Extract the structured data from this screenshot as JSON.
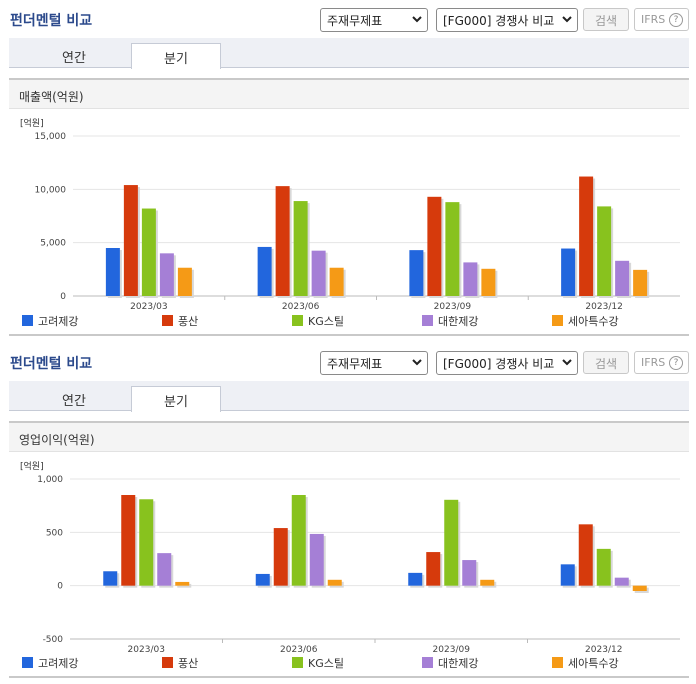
{
  "sections": [
    {
      "title": "펀더멘털 비교",
      "select1": "주재무제표",
      "select2": "[FG000] 경쟁사 비교",
      "search_label": "검색",
      "ifrs_label": "IFRS",
      "help_symbol": "?",
      "tabs": [
        {
          "label": "연간"
        },
        {
          "label": "분기"
        }
      ],
      "active_tab": "분기",
      "chart_title": "매출액(억원)"
    },
    {
      "title": "펀더멘털 비교",
      "select1": "주재무제표",
      "select2": "[FG000] 경쟁사 비교",
      "search_label": "검색",
      "ifrs_label": "IFRS",
      "help_symbol": "?",
      "tabs": [
        {
          "label": "연간"
        },
        {
          "label": "분기"
        }
      ],
      "active_tab": "분기",
      "chart_title": "영업이익(억원)"
    }
  ],
  "colors": {
    "고려제강": "#2266dd",
    "풍산": "#d63a0c",
    "KG스틸": "#88c21e",
    "대한제강": "#a57fd6",
    "세아특수강": "#f59a16"
  },
  "chart_data": [
    {
      "type": "bar",
      "title": "매출액(억원)",
      "unit_label": "[억원]",
      "categories": [
        "2023/03",
        "2023/06",
        "2023/09",
        "2023/12"
      ],
      "ylim": [
        0,
        15000
      ],
      "yticks": [
        0,
        5000,
        10000,
        15000
      ],
      "ytick_labels": [
        "0",
        "5,000",
        "10,000",
        "15,000"
      ],
      "grid": true,
      "legend": "bottom",
      "series": [
        {
          "name": "고려제강",
          "values": [
            4500,
            4600,
            4300,
            4450
          ]
        },
        {
          "name": "풍산",
          "values": [
            10400,
            10300,
            9300,
            11200
          ]
        },
        {
          "name": "KG스틸",
          "values": [
            8200,
            8900,
            8800,
            8400
          ]
        },
        {
          "name": "대한제강",
          "values": [
            4000,
            4250,
            3150,
            3300
          ]
        },
        {
          "name": "세아특수강",
          "values": [
            2650,
            2650,
            2550,
            2450
          ]
        }
      ]
    },
    {
      "type": "bar",
      "title": "영업이익(억원)",
      "unit_label": "[억원]",
      "categories": [
        "2023/03",
        "2023/06",
        "2023/09",
        "2023/12"
      ],
      "ylim": [
        -500,
        1000
      ],
      "yticks": [
        -500,
        0,
        500,
        1000
      ],
      "ytick_labels": [
        "-500",
        "0",
        "500",
        "1,000"
      ],
      "grid": true,
      "legend": "bottom",
      "series": [
        {
          "name": "고려제강",
          "values": [
            135,
            110,
            120,
            200
          ]
        },
        {
          "name": "풍산",
          "values": [
            850,
            540,
            315,
            575
          ]
        },
        {
          "name": "KG스틸",
          "values": [
            810,
            850,
            805,
            345
          ]
        },
        {
          "name": "대한제강",
          "values": [
            305,
            485,
            240,
            75
          ]
        },
        {
          "name": "세아특수강",
          "values": [
            35,
            55,
            55,
            -50
          ]
        }
      ]
    }
  ]
}
